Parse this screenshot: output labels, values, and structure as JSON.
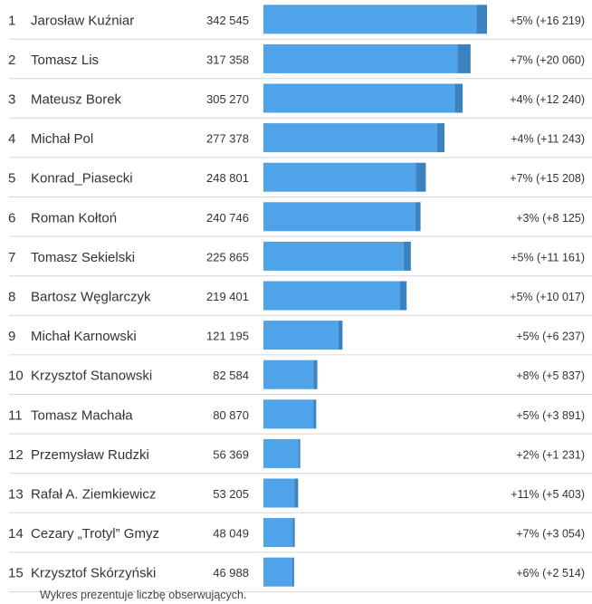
{
  "chart_data": {
    "type": "bar",
    "orientation": "horizontal",
    "title": "",
    "xlabel": "",
    "ylabel": "",
    "xlim": [
      0,
      342545
    ],
    "grid": false,
    "legend": "none",
    "colors": {
      "bar": "#4fa3e8",
      "bar_increase": "#3c82c0",
      "row_separator": "#d6d6d6"
    },
    "rows": [
      {
        "rank": "1",
        "name": "Jarosław Kuźniar",
        "value": 342545,
        "value_label": "342 545",
        "increase": 16219,
        "change_label": "+5% (+16 219)"
      },
      {
        "rank": "2",
        "name": "Tomasz Lis",
        "value": 317358,
        "value_label": "317 358",
        "increase": 20060,
        "change_label": "+7% (+20 060)"
      },
      {
        "rank": "3",
        "name": "Mateusz Borek",
        "value": 305270,
        "value_label": "305 270",
        "increase": 12240,
        "change_label": "+4% (+12 240)"
      },
      {
        "rank": "4",
        "name": "Michał Pol",
        "value": 277378,
        "value_label": "277 378",
        "increase": 11243,
        "change_label": "+4% (+11 243)"
      },
      {
        "rank": "5",
        "name": "Konrad_Piasecki",
        "value": 248801,
        "value_label": "248 801",
        "increase": 15208,
        "change_label": "+7% (+15 208)"
      },
      {
        "rank": "6",
        "name": "Roman Kołtoń",
        "value": 240746,
        "value_label": "240 746",
        "increase": 8125,
        "change_label": "+3% (+8 125)"
      },
      {
        "rank": "7",
        "name": "Tomasz Sekielski",
        "value": 225865,
        "value_label": "225 865",
        "increase": 11161,
        "change_label": "+5% (+11 161)"
      },
      {
        "rank": "8",
        "name": "Bartosz Węglarczyk",
        "value": 219401,
        "value_label": "219 401",
        "increase": 10017,
        "change_label": "+5% (+10 017)"
      },
      {
        "rank": "9",
        "name": "Michał Karnowski",
        "value": 121195,
        "value_label": "121 195",
        "increase": 6237,
        "change_label": "+5% (+6 237)"
      },
      {
        "rank": "10",
        "name": "Krzysztof Stanowski",
        "value": 82584,
        "value_label": "82 584",
        "increase": 5837,
        "change_label": "+8% (+5 837)"
      },
      {
        "rank": "11",
        "name": "Tomasz Machała",
        "value": 80870,
        "value_label": "80 870",
        "increase": 3891,
        "change_label": "+5% (+3 891)"
      },
      {
        "rank": "12",
        "name": "Przemysław Rudzki",
        "value": 56369,
        "value_label": "56 369",
        "increase": 1231,
        "change_label": "+2% (+1 231)"
      },
      {
        "rank": "13",
        "name": "Rafał A. Ziemkiewicz",
        "value": 53205,
        "value_label": "53 205",
        "increase": 5403,
        "change_label": "+11% (+5 403)"
      },
      {
        "rank": "14",
        "name": "Cezary „Trotyl” Gmyz",
        "value": 48049,
        "value_label": "48 049",
        "increase": 3054,
        "change_label": "+7% (+3 054)"
      },
      {
        "rank": "15",
        "name": "Krzysztof Skórzyński",
        "value": 46988,
        "value_label": "46 988",
        "increase": 2514,
        "change_label": "+6% (+2 514)"
      }
    ],
    "footnote": "Wykres prezentuje liczbę obserwujących."
  }
}
